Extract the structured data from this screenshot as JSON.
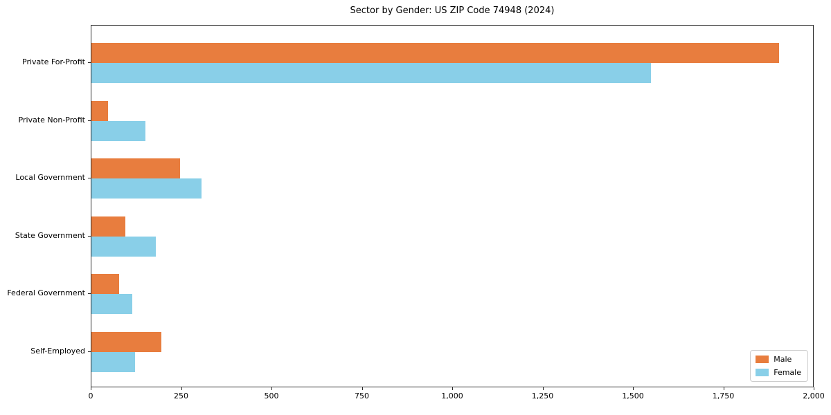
{
  "title": "Sector by Gender: US ZIP Code 74948 (2024)",
  "chart_data": {
    "type": "bar",
    "orientation": "horizontal",
    "title": "Sector by Gender: US ZIP Code 74948 (2024)",
    "categories": [
      "Private For-Profit",
      "Private Non-Profit",
      "Local Government",
      "State Government",
      "Federal Government",
      "Self-Employed"
    ],
    "series": [
      {
        "name": "Male",
        "color": "#e87d3e",
        "values": [
          1905,
          46,
          245,
          95,
          77,
          193
        ]
      },
      {
        "name": "Female",
        "color": "#89cfe8",
        "values": [
          1550,
          150,
          305,
          178,
          113,
          121
        ]
      }
    ],
    "xlim": [
      0,
      2000
    ],
    "x_ticks": [
      0,
      250,
      500,
      750,
      1000,
      1250,
      1500,
      1750,
      2000
    ],
    "x_tick_labels": [
      "0",
      "250",
      "500",
      "750",
      "1,000",
      "1,250",
      "1,500",
      "1,750",
      "2,000"
    ],
    "xlabel": "",
    "ylabel": "",
    "grid": false,
    "legend": {
      "position": "lower right",
      "items": [
        "Male",
        "Female"
      ]
    }
  }
}
